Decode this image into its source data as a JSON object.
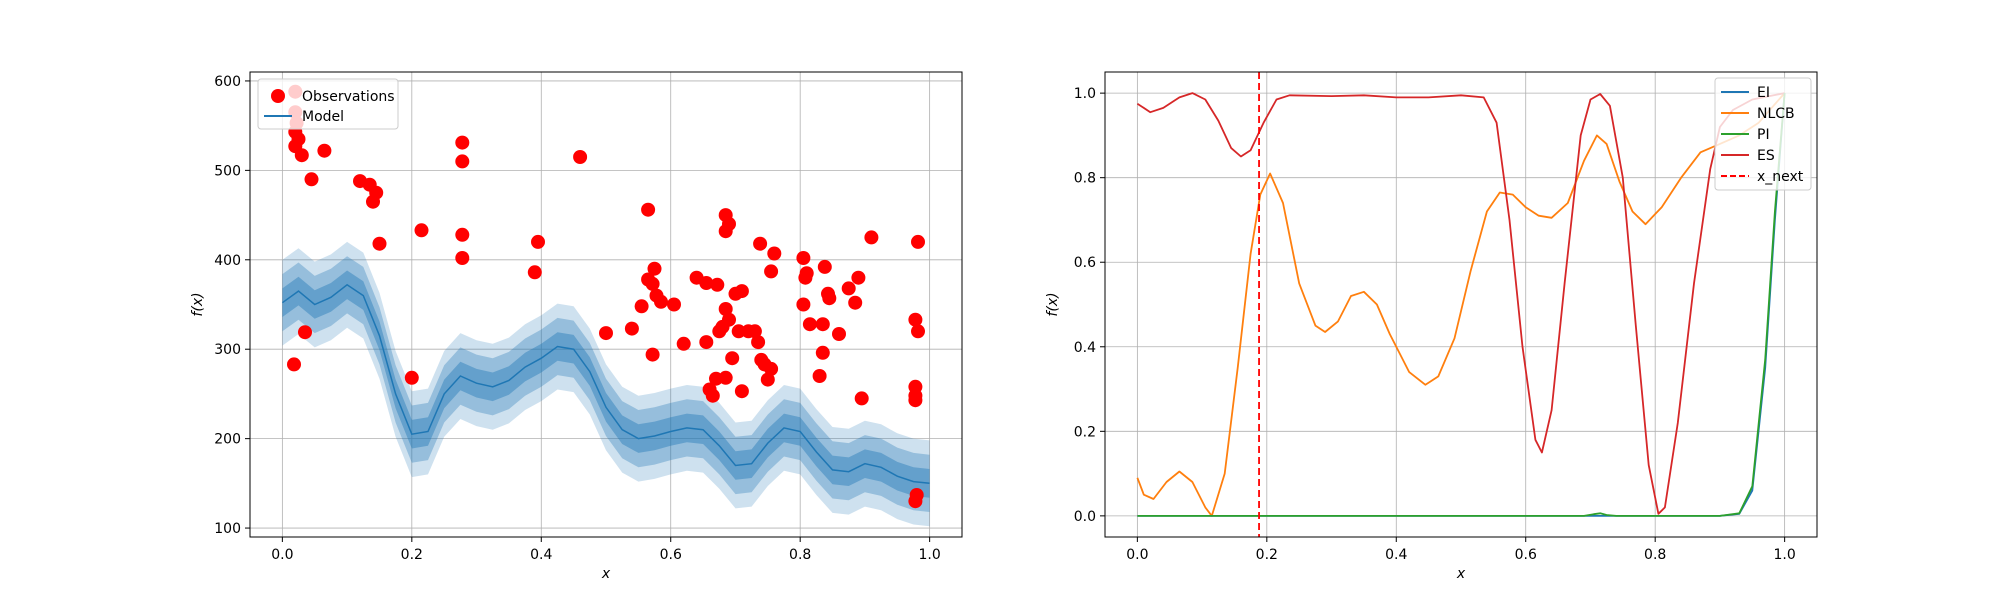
{
  "chart_data": [
    {
      "type": "scatter",
      "xlabel": "x",
      "ylabel": "f(x)",
      "xlim": [
        -0.05,
        1.05
      ],
      "ylim": [
        90,
        610
      ],
      "x_ticks": [
        "0.0",
        "0.2",
        "0.4",
        "0.6",
        "0.8",
        "1.0"
      ],
      "x_tick_values": [
        0.0,
        0.2,
        0.4,
        0.6,
        0.8,
        1.0
      ],
      "y_ticks": [
        "100",
        "200",
        "300",
        "400",
        "500",
        "600"
      ],
      "y_tick_values": [
        100,
        200,
        300,
        400,
        500,
        600
      ],
      "grid": true,
      "legend": {
        "placement": "top-left",
        "entries": [
          {
            "label": "Observations",
            "color": "#ff0000",
            "marker": "circle"
          },
          {
            "label": "Model",
            "color": "#1f77b4",
            "marker": "line"
          }
        ]
      },
      "observations": [
        [
          0.02,
          588
        ],
        [
          0.02,
          565
        ],
        [
          0.022,
          553
        ],
        [
          0.02,
          543
        ],
        [
          0.025,
          535
        ],
        [
          0.02,
          527
        ],
        [
          0.03,
          517
        ],
        [
          0.045,
          490
        ],
        [
          0.065,
          522
        ],
        [
          0.018,
          283
        ],
        [
          0.035,
          319
        ],
        [
          0.12,
          488
        ],
        [
          0.135,
          484
        ],
        [
          0.14,
          465
        ],
        [
          0.145,
          475
        ],
        [
          0.15,
          418
        ],
        [
          0.2,
          268
        ],
        [
          0.215,
          433
        ],
        [
          0.278,
          531
        ],
        [
          0.278,
          510
        ],
        [
          0.278,
          428
        ],
        [
          0.278,
          402
        ],
        [
          0.39,
          386
        ],
        [
          0.395,
          420
        ],
        [
          0.46,
          515
        ],
        [
          0.5,
          318
        ],
        [
          0.54,
          323
        ],
        [
          0.555,
          348
        ],
        [
          0.565,
          456
        ],
        [
          0.565,
          378
        ],
        [
          0.572,
          373
        ],
        [
          0.575,
          390
        ],
        [
          0.578,
          360
        ],
        [
          0.572,
          294
        ],
        [
          0.585,
          353
        ],
        [
          0.605,
          350
        ],
        [
          0.62,
          306
        ],
        [
          0.64,
          380
        ],
        [
          0.655,
          374
        ],
        [
          0.655,
          308
        ],
        [
          0.66,
          255
        ],
        [
          0.665,
          248
        ],
        [
          0.67,
          267
        ],
        [
          0.672,
          372
        ],
        [
          0.675,
          320
        ],
        [
          0.68,
          325
        ],
        [
          0.685,
          345
        ],
        [
          0.685,
          432
        ],
        [
          0.685,
          450
        ],
        [
          0.69,
          440
        ],
        [
          0.69,
          333
        ],
        [
          0.685,
          268
        ],
        [
          0.695,
          290
        ],
        [
          0.7,
          362
        ],
        [
          0.705,
          320
        ],
        [
          0.71,
          365
        ],
        [
          0.71,
          253
        ],
        [
          0.72,
          320
        ],
        [
          0.73,
          320
        ],
        [
          0.735,
          308
        ],
        [
          0.738,
          418
        ],
        [
          0.74,
          288
        ],
        [
          0.745,
          283
        ],
        [
          0.75,
          266
        ],
        [
          0.755,
          278
        ],
        [
          0.755,
          387
        ],
        [
          0.76,
          407
        ],
        [
          0.805,
          402
        ],
        [
          0.805,
          350
        ],
        [
          0.808,
          380
        ],
        [
          0.81,
          385
        ],
        [
          0.815,
          328
        ],
        [
          0.83,
          270
        ],
        [
          0.835,
          296
        ],
        [
          0.835,
          328
        ],
        [
          0.838,
          392
        ],
        [
          0.843,
          362
        ],
        [
          0.845,
          357
        ],
        [
          0.86,
          317
        ],
        [
          0.875,
          368
        ],
        [
          0.885,
          352
        ],
        [
          0.89,
          380
        ],
        [
          0.895,
          245
        ],
        [
          0.91,
          425
        ],
        [
          0.978,
          333
        ],
        [
          0.982,
          420
        ],
        [
          0.982,
          320
        ],
        [
          0.978,
          258
        ],
        [
          0.978,
          248
        ],
        [
          0.978,
          243
        ],
        [
          0.98,
          137
        ],
        [
          0.978,
          130
        ]
      ],
      "model_mean": [
        [
          0.0,
          352
        ],
        [
          0.025,
          365
        ],
        [
          0.05,
          350
        ],
        [
          0.075,
          358
        ],
        [
          0.1,
          372
        ],
        [
          0.125,
          360
        ],
        [
          0.15,
          315
        ],
        [
          0.175,
          250
        ],
        [
          0.2,
          205
        ],
        [
          0.225,
          208
        ],
        [
          0.25,
          250
        ],
        [
          0.275,
          270
        ],
        [
          0.3,
          262
        ],
        [
          0.325,
          258
        ],
        [
          0.35,
          265
        ],
        [
          0.375,
          280
        ],
        [
          0.4,
          290
        ],
        [
          0.425,
          303
        ],
        [
          0.45,
          300
        ],
        [
          0.475,
          275
        ],
        [
          0.5,
          235
        ],
        [
          0.525,
          210
        ],
        [
          0.55,
          200
        ],
        [
          0.575,
          203
        ],
        [
          0.6,
          208
        ],
        [
          0.625,
          212
        ],
        [
          0.65,
          210
        ],
        [
          0.675,
          192
        ],
        [
          0.7,
          170
        ],
        [
          0.725,
          172
        ],
        [
          0.75,
          195
        ],
        [
          0.775,
          212
        ],
        [
          0.8,
          208
        ],
        [
          0.825,
          185
        ],
        [
          0.85,
          165
        ],
        [
          0.875,
          163
        ],
        [
          0.9,
          172
        ],
        [
          0.925,
          168
        ],
        [
          0.95,
          158
        ],
        [
          0.975,
          152
        ],
        [
          1.0,
          150
        ]
      ],
      "band_colors": [
        "#1f77b4"
      ]
    },
    {
      "type": "line",
      "xlabel": "x",
      "ylabel": "f(x)",
      "xlim": [
        -0.05,
        1.05
      ],
      "ylim": [
        -0.05,
        1.05
      ],
      "x_ticks": [
        "0.0",
        "0.2",
        "0.4",
        "0.6",
        "0.8",
        "1.0"
      ],
      "x_tick_values": [
        0.0,
        0.2,
        0.4,
        0.6,
        0.8,
        1.0
      ],
      "y_ticks": [
        "0.0",
        "0.2",
        "0.4",
        "0.6",
        "0.8",
        "1.0"
      ],
      "y_tick_values": [
        0.0,
        0.2,
        0.4,
        0.6,
        0.8,
        1.0
      ],
      "grid": true,
      "legend": {
        "placement": "top-right",
        "entries": [
          {
            "label": "EI",
            "color": "#1f77b4",
            "style": "solid"
          },
          {
            "label": "NLCB",
            "color": "#ff7f0e",
            "style": "solid"
          },
          {
            "label": "PI",
            "color": "#2ca02c",
            "style": "solid"
          },
          {
            "label": "ES",
            "color": "#d62728",
            "style": "solid"
          },
          {
            "label": "x_next",
            "color": "#ff0000",
            "style": "dashed"
          }
        ]
      },
      "x_next": 0.188,
      "series": [
        {
          "name": "EI",
          "color": "#1f77b4",
          "points": [
            [
              0.0,
              0.0
            ],
            [
              0.7,
              0.0
            ],
            [
              0.9,
              0.0
            ],
            [
              0.93,
              0.005
            ],
            [
              0.95,
              0.06
            ],
            [
              0.97,
              0.35
            ],
            [
              0.985,
              0.7
            ],
            [
              1.0,
              1.0
            ]
          ]
        },
        {
          "name": "NLCB",
          "color": "#ff7f0e",
          "points": [
            [
              0.0,
              0.09
            ],
            [
              0.01,
              0.05
            ],
            [
              0.025,
              0.04
            ],
            [
              0.045,
              0.08
            ],
            [
              0.065,
              0.105
            ],
            [
              0.085,
              0.08
            ],
            [
              0.105,
              0.02
            ],
            [
              0.115,
              0.0
            ],
            [
              0.135,
              0.1
            ],
            [
              0.155,
              0.35
            ],
            [
              0.175,
              0.62
            ],
            [
              0.19,
              0.76
            ],
            [
              0.205,
              0.81
            ],
            [
              0.225,
              0.74
            ],
            [
              0.25,
              0.55
            ],
            [
              0.275,
              0.45
            ],
            [
              0.29,
              0.435
            ],
            [
              0.31,
              0.46
            ],
            [
              0.33,
              0.52
            ],
            [
              0.35,
              0.53
            ],
            [
              0.37,
              0.5
            ],
            [
              0.39,
              0.43
            ],
            [
              0.42,
              0.34
            ],
            [
              0.445,
              0.31
            ],
            [
              0.465,
              0.33
            ],
            [
              0.49,
              0.42
            ],
            [
              0.515,
              0.58
            ],
            [
              0.54,
              0.72
            ],
            [
              0.56,
              0.765
            ],
            [
              0.58,
              0.76
            ],
            [
              0.6,
              0.73
            ],
            [
              0.62,
              0.71
            ],
            [
              0.64,
              0.705
            ],
            [
              0.665,
              0.74
            ],
            [
              0.69,
              0.84
            ],
            [
              0.71,
              0.9
            ],
            [
              0.725,
              0.88
            ],
            [
              0.745,
              0.79
            ],
            [
              0.765,
              0.72
            ],
            [
              0.785,
              0.69
            ],
            [
              0.81,
              0.73
            ],
            [
              0.84,
              0.8
            ],
            [
              0.87,
              0.86
            ],
            [
              0.9,
              0.88
            ],
            [
              0.93,
              0.9
            ],
            [
              0.96,
              0.93
            ],
            [
              1.0,
              1.0
            ]
          ]
        },
        {
          "name": "PI",
          "color": "#2ca02c",
          "points": [
            [
              0.0,
              0.0
            ],
            [
              0.69,
              0.0
            ],
            [
              0.705,
              0.004
            ],
            [
              0.715,
              0.006
            ],
            [
              0.725,
              0.002
            ],
            [
              0.74,
              0.0
            ],
            [
              0.9,
              0.0
            ],
            [
              0.93,
              0.006
            ],
            [
              0.95,
              0.07
            ],
            [
              0.97,
              0.37
            ],
            [
              0.985,
              0.72
            ],
            [
              1.0,
              1.0
            ]
          ]
        },
        {
          "name": "ES",
          "color": "#d62728",
          "points": [
            [
              0.0,
              0.975
            ],
            [
              0.02,
              0.955
            ],
            [
              0.04,
              0.965
            ],
            [
              0.065,
              0.99
            ],
            [
              0.085,
              1.0
            ],
            [
              0.105,
              0.985
            ],
            [
              0.125,
              0.935
            ],
            [
              0.145,
              0.87
            ],
            [
              0.16,
              0.85
            ],
            [
              0.175,
              0.865
            ],
            [
              0.195,
              0.93
            ],
            [
              0.215,
              0.985
            ],
            [
              0.235,
              0.995
            ],
            [
              0.3,
              0.993
            ],
            [
              0.35,
              0.995
            ],
            [
              0.4,
              0.99
            ],
            [
              0.45,
              0.99
            ],
            [
              0.5,
              0.995
            ],
            [
              0.535,
              0.99
            ],
            [
              0.555,
              0.93
            ],
            [
              0.575,
              0.7
            ],
            [
              0.595,
              0.4
            ],
            [
              0.615,
              0.18
            ],
            [
              0.625,
              0.15
            ],
            [
              0.64,
              0.25
            ],
            [
              0.66,
              0.55
            ],
            [
              0.685,
              0.9
            ],
            [
              0.7,
              0.985
            ],
            [
              0.715,
              0.998
            ],
            [
              0.73,
              0.97
            ],
            [
              0.75,
              0.8
            ],
            [
              0.77,
              0.45
            ],
            [
              0.79,
              0.12
            ],
            [
              0.805,
              0.005
            ],
            [
              0.815,
              0.02
            ],
            [
              0.835,
              0.22
            ],
            [
              0.86,
              0.55
            ],
            [
              0.885,
              0.82
            ],
            [
              0.9,
              0.92
            ],
            [
              0.92,
              0.96
            ],
            [
              0.95,
              0.985
            ],
            [
              1.0,
              1.0
            ]
          ]
        }
      ]
    }
  ]
}
